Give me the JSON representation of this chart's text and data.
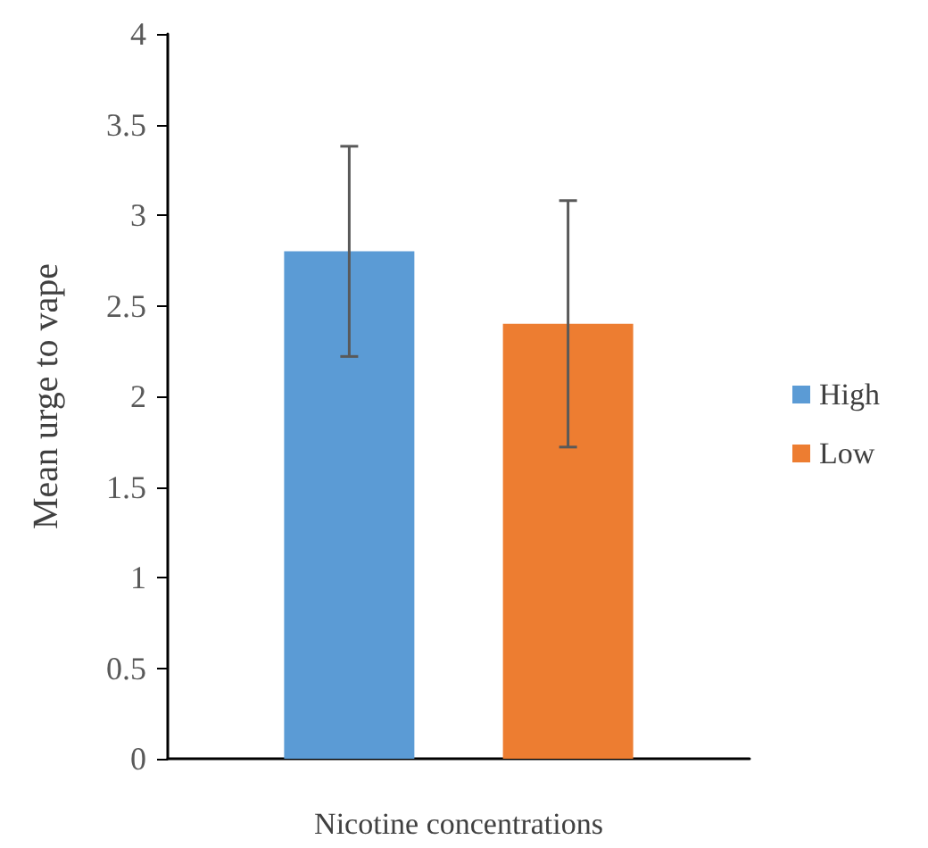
{
  "chart_data": {
    "type": "bar",
    "xlabel": "Nicotine concentrations",
    "ylabel": "Mean urge to vape",
    "categories": [
      null
    ],
    "series": [
      {
        "name": "High",
        "color": "#5b9bd5",
        "values": [
          2.8
        ],
        "errors": [
          0.58
        ]
      },
      {
        "name": "Low",
        "color": "#ed7d31",
        "values": [
          2.4
        ],
        "errors": [
          0.68
        ]
      }
    ],
    "ylim": [
      0,
      4
    ],
    "yticks": [
      0,
      0.5,
      1,
      1.5,
      2,
      2.5,
      3,
      3.5,
      4
    ],
    "grid": false,
    "legend": "right"
  }
}
